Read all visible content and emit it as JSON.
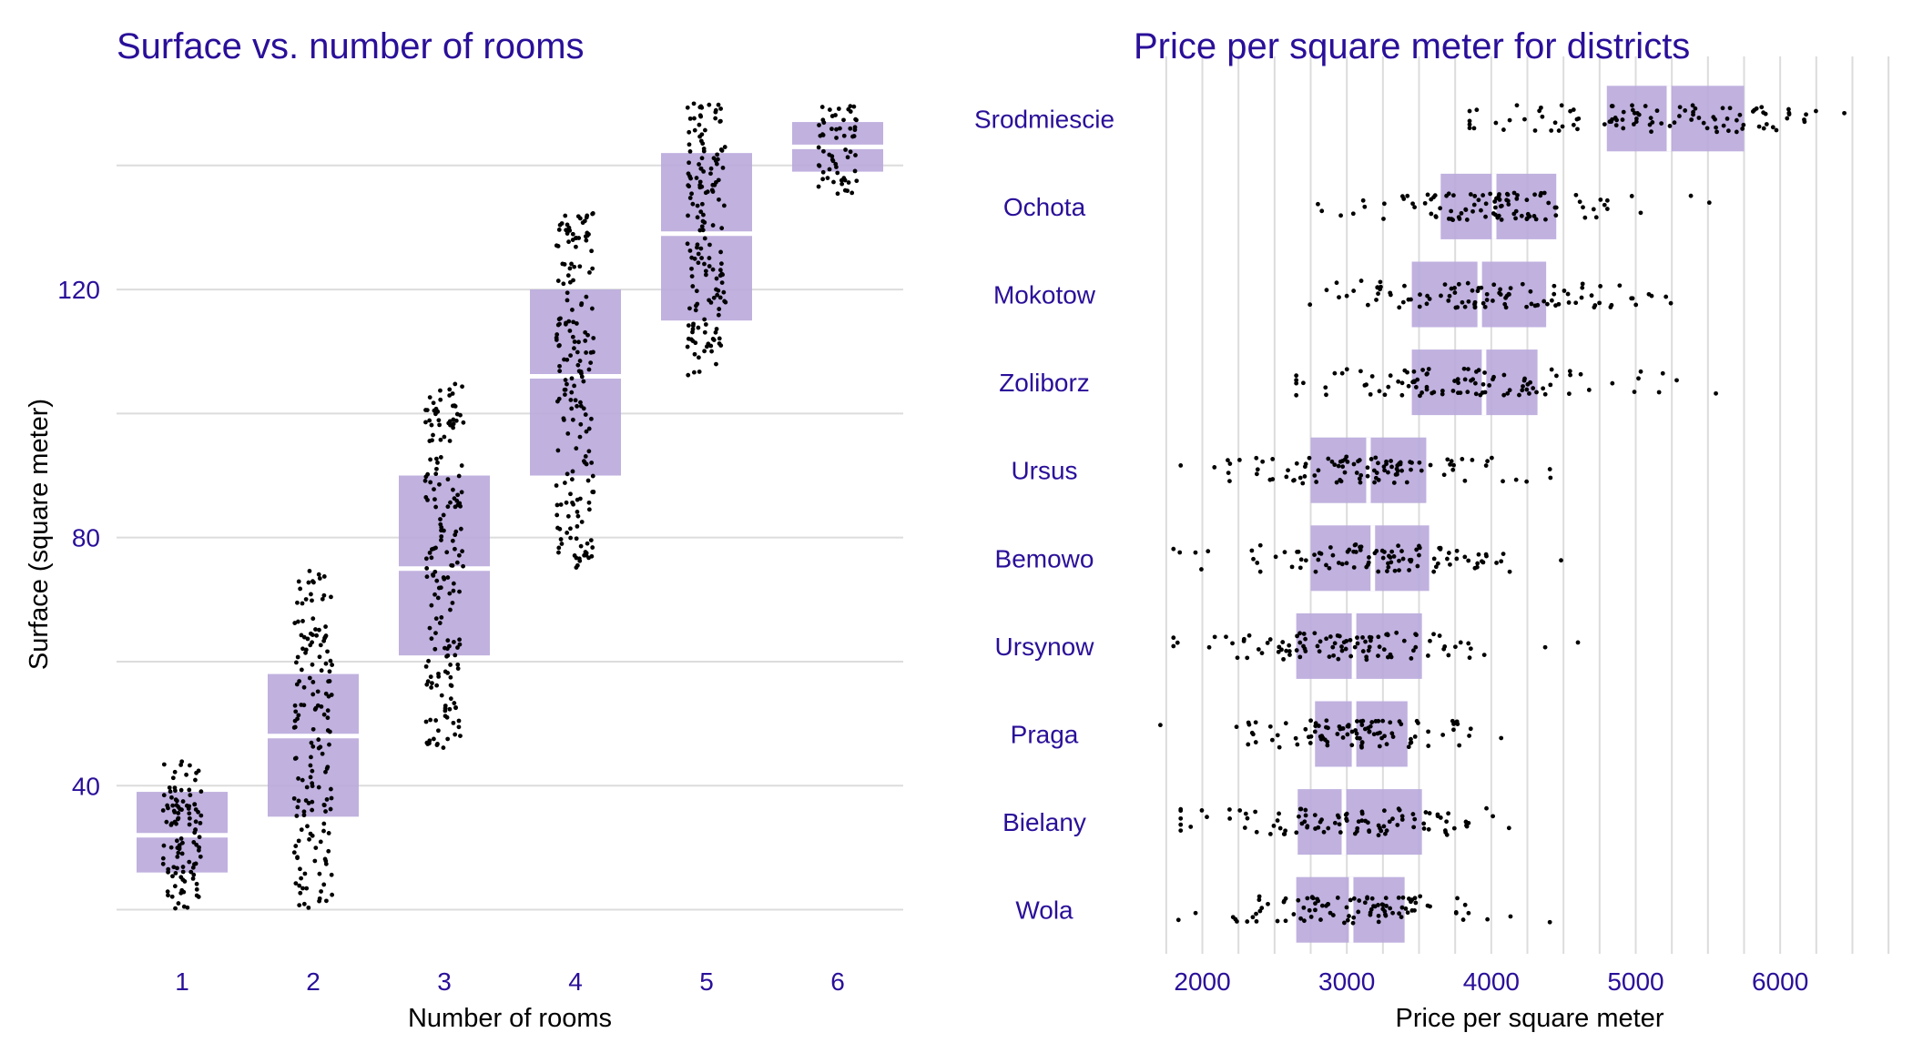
{
  "chart_data": [
    {
      "type": "box-jitter",
      "title": "Surface vs. number of rooms",
      "xlabel": "Number of rooms",
      "ylabel": "Surface (square meter)",
      "categories": [
        "1",
        "2",
        "3",
        "4",
        "5",
        "6"
      ],
      "y_ticks": [
        40,
        80,
        120
      ],
      "ylim": [
        17,
        152
      ],
      "grid": "horizontal",
      "colors": {
        "box": "#b9a8dc",
        "median": "#ffffff",
        "points": "#000000",
        "text": "#2a0f99"
      },
      "boxes": [
        {
          "category": "1",
          "q1": 26,
          "median": 32,
          "q3": 39,
          "min": 20,
          "max": 44
        },
        {
          "category": "2",
          "q1": 35,
          "median": 48,
          "q3": 58,
          "min": 20,
          "max": 75
        },
        {
          "category": "3",
          "q1": 61,
          "median": 75,
          "q3": 90,
          "min": 46,
          "max": 105
        },
        {
          "category": "4",
          "q1": 90,
          "median": 106,
          "q3": 120,
          "min": 75,
          "max": 134
        },
        {
          "category": "5",
          "q1": 115,
          "median": 129,
          "q3": 142,
          "min": 106,
          "max": 150
        },
        {
          "category": "6",
          "q1": 139,
          "median": 143,
          "q3": 147,
          "min": 135,
          "max": 150
        }
      ],
      "points_per_category": [
        110,
        160,
        180,
        180,
        160,
        60
      ]
    },
    {
      "type": "box-jitter",
      "orientation": "horizontal",
      "title": "Price per square meter for districts",
      "xlabel": "Price per square meter",
      "categories": [
        "Srodmiescie",
        "Ochota",
        "Mokotow",
        "Zoliborz",
        "Ursus",
        "Bemowo",
        "Ursynow",
        "Praga",
        "Bielany",
        "Wola"
      ],
      "x_ticks": [
        2000,
        3000,
        4000,
        5000,
        6000
      ],
      "xlim": [
        1650,
        6850
      ],
      "grid": "vertical",
      "colors": {
        "box": "#b9a8dc",
        "median": "#ffffff",
        "points": "#000000",
        "text": "#2a0f99"
      },
      "boxes": [
        {
          "category": "Srodmiescie",
          "q1": 4800,
          "median": 5230,
          "q3": 5750,
          "min": 3850,
          "max": 6800
        },
        {
          "category": "Ochota",
          "q1": 3650,
          "median": 4020,
          "q3": 4450,
          "min": 2800,
          "max": 5600
        },
        {
          "category": "Mokotow",
          "q1": 3450,
          "median": 3920,
          "q3": 4380,
          "min": 2700,
          "max": 5700
        },
        {
          "category": "Zoliborz",
          "q1": 3450,
          "median": 3950,
          "q3": 4320,
          "min": 2650,
          "max": 5650
        },
        {
          "category": "Ursus",
          "q1": 2750,
          "median": 3150,
          "q3": 3550,
          "min": 1850,
          "max": 4800
        },
        {
          "category": "Bemowo",
          "q1": 2750,
          "median": 3180,
          "q3": 3570,
          "min": 1800,
          "max": 4900
        },
        {
          "category": "Ursynow",
          "q1": 2650,
          "median": 3050,
          "q3": 3520,
          "min": 1800,
          "max": 4600
        },
        {
          "category": "Praga",
          "q1": 2780,
          "median": 3050,
          "q3": 3420,
          "min": 1700,
          "max": 4350
        },
        {
          "category": "Bielany",
          "q1": 2660,
          "median": 2980,
          "q3": 3520,
          "min": 1850,
          "max": 4800
        },
        {
          "category": "Wola",
          "q1": 2650,
          "median": 3030,
          "q3": 3400,
          "min": 1750,
          "max": 4650
        }
      ],
      "points_per_category": 100
    }
  ]
}
